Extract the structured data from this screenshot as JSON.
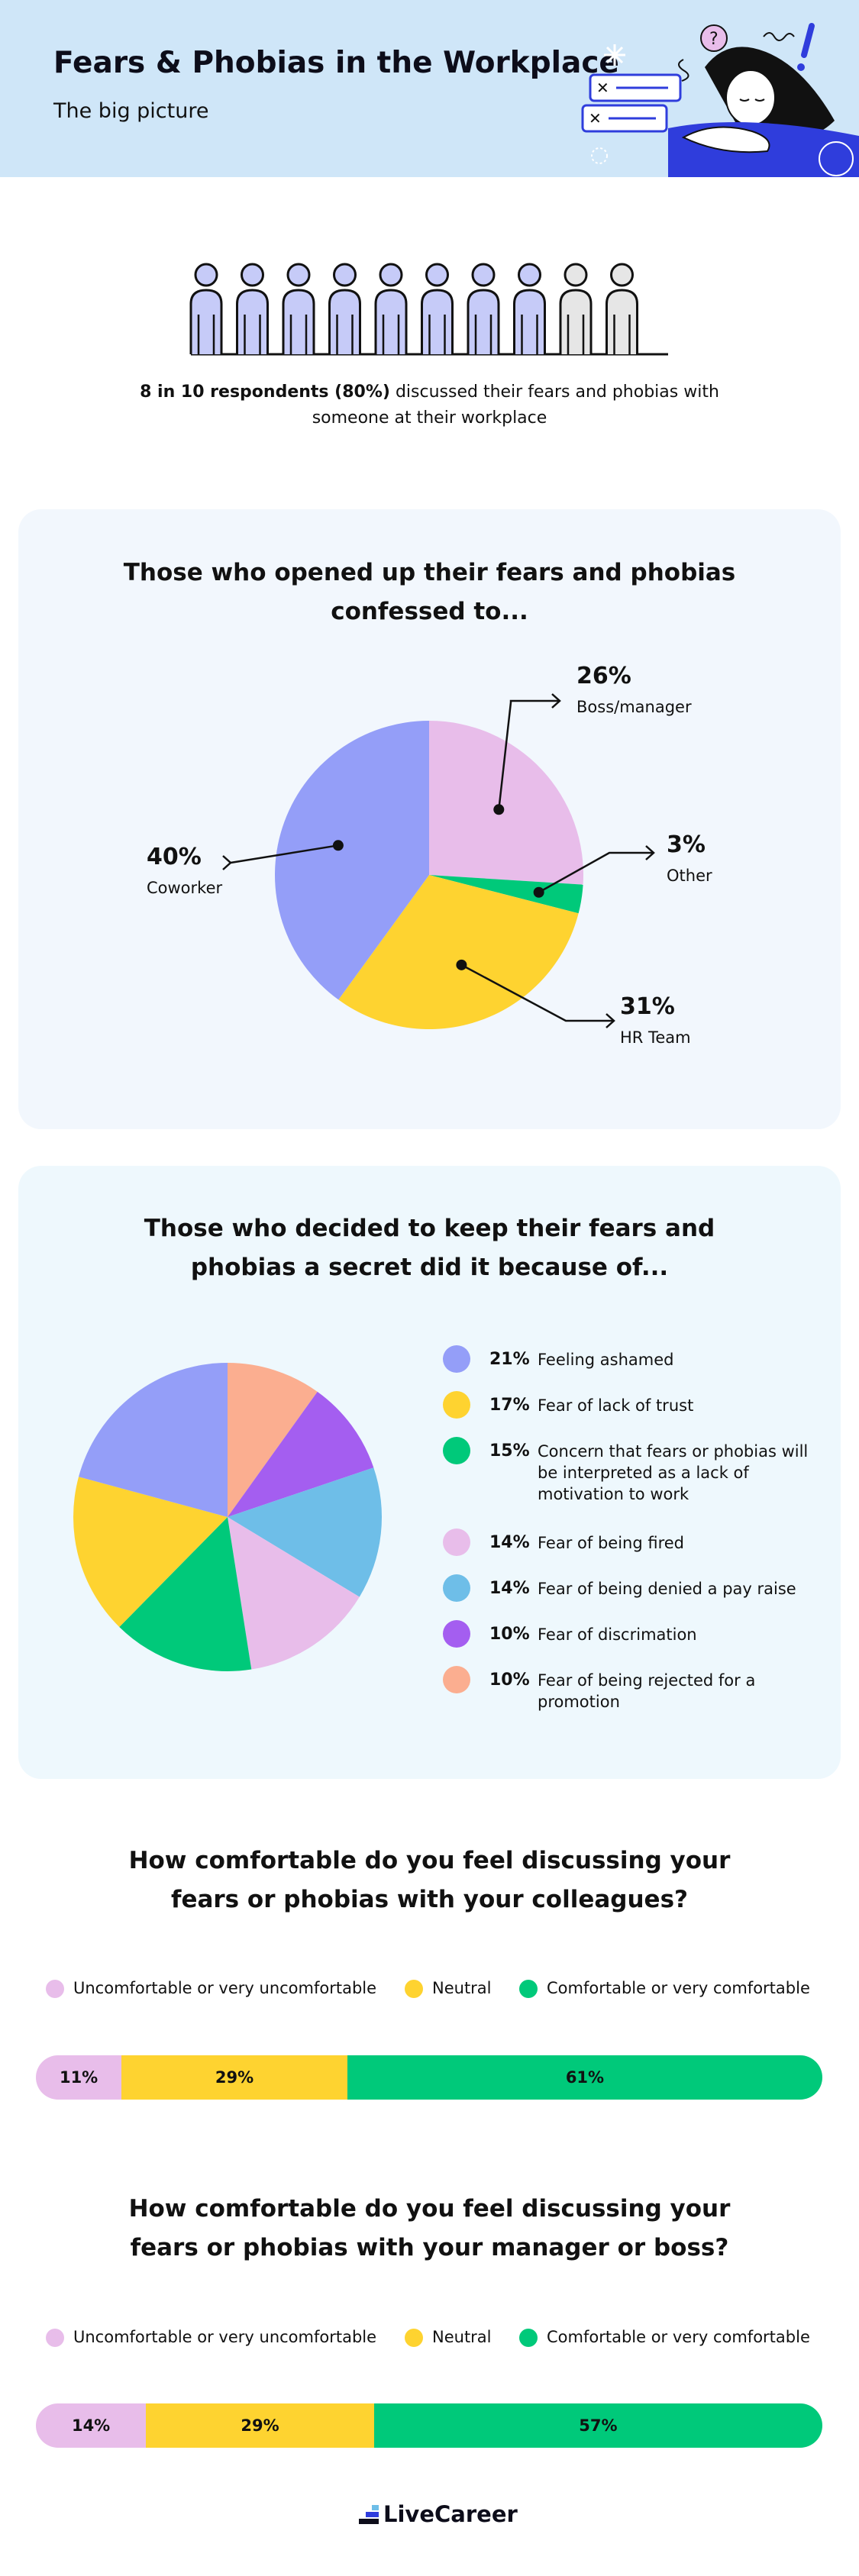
{
  "header": {
    "title": "Fears & Phobias in the Workplace",
    "subtitle": "The big picture"
  },
  "stat": {
    "bold": "8 in 10 respondents (80%)",
    "rest": " discussed their fears and phobias with someone at their workplace",
    "highlighted_people": 8,
    "total_people": 10
  },
  "colors": {
    "periwinkle": "#949ef8",
    "yellow": "#fed330",
    "green": "#00c97a",
    "pink": "#e8bdea",
    "sky": "#6ebee8",
    "purple": "#a45ef0",
    "peach": "#fbae90",
    "header_bg": "#cfe6f8"
  },
  "chart_data": [
    {
      "type": "pie",
      "title": "Those who opened up their fears and phobias confessed to...",
      "title_lines": [
        "Those who opened up their fears and phobias",
        "confessed to..."
      ],
      "slices": [
        {
          "label": "Boss/manager",
          "pct_label": "26%",
          "value": 26,
          "color": "#e8bdea"
        },
        {
          "label": "Other",
          "pct_label": "3%",
          "value": 3,
          "color": "#00c97a"
        },
        {
          "label": "HR Team",
          "pct_label": "31%",
          "value": 31,
          "color": "#fed330"
        },
        {
          "label": "Coworker",
          "pct_label": "40%",
          "value": 40,
          "color": "#949ef8"
        }
      ]
    },
    {
      "type": "pie",
      "title": "Those who decided to keep their fears and phobias a secret did it because of...",
      "title_lines": [
        "Those who decided to keep their fears and",
        "phobias a secret did it because of..."
      ],
      "slices": [
        {
          "label": "Feeling ashamed",
          "pct_label": "21%",
          "value": 21,
          "color": "#949ef8"
        },
        {
          "label": "Fear of lack of trust",
          "pct_label": "17%",
          "value": 17,
          "color": "#fed330"
        },
        {
          "label": "Concern that fears or phobias will be interpreted as a lack of motivation to work",
          "pct_label": "15%",
          "value": 15,
          "color": "#00c97a"
        },
        {
          "label": "Fear of being fired",
          "pct_label": "14%",
          "value": 14,
          "color": "#e8bdea"
        },
        {
          "label": "Fear of being denied a pay raise",
          "pct_label": "14%",
          "value": 14,
          "color": "#6ebee8"
        },
        {
          "label": "Fear of discrimation",
          "pct_label": "10%",
          "value": 10,
          "color": "#a45ef0"
        },
        {
          "label": "Fear of being rejected for a promotion",
          "pct_label": "10%",
          "value": 10,
          "color": "#fbae90"
        }
      ]
    },
    {
      "type": "bar",
      "orientation": "stacked-horizontal",
      "title": "How comfortable do you feel discussing your fears or phobias with your colleagues?",
      "title_lines": [
        "How comfortable do you feel discussing your",
        "fears or phobias with your colleagues?"
      ],
      "categories": [
        "Uncomfortable or very uncomfortable",
        "Neutral",
        "Comfortable or very comfortable"
      ],
      "values": [
        11,
        29,
        61
      ],
      "value_labels": [
        "11%",
        "29%",
        "61%"
      ],
      "colors": [
        "#e8bdea",
        "#fed330",
        "#00c97a"
      ]
    },
    {
      "type": "bar",
      "orientation": "stacked-horizontal",
      "title": "How comfortable do you feel discussing your fears or phobias with your manager or boss?",
      "title_lines": [
        "How comfortable do you feel discussing your",
        "fears or phobias with your manager or boss?"
      ],
      "categories": [
        "Uncomfortable or very uncomfortable",
        "Neutral",
        "Comfortable or very comfortable"
      ],
      "values": [
        14,
        29,
        57
      ],
      "value_labels": [
        "14%",
        "29%",
        "57%"
      ],
      "colors": [
        "#e8bdea",
        "#fed330",
        "#00c97a"
      ]
    }
  ],
  "footer": {
    "brand": "LiveCareer"
  }
}
